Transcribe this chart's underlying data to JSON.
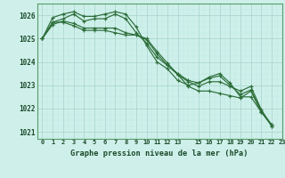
{
  "title": "Graphe pression niveau de la mer (hPa)",
  "bg_color": "#cff0ea",
  "grid_color_major": "#aad8d0",
  "grid_color_minor": "#bce8e2",
  "line_color": "#2d6e3a",
  "spine_color": "#5a9a6a",
  "ylim": [
    1020.7,
    1026.5
  ],
  "xlim": [
    -0.5,
    23
  ],
  "yticks": [
    1021,
    1022,
    1023,
    1024,
    1025,
    1026
  ],
  "xtick_positions": [
    0,
    1,
    2,
    3,
    4,
    5,
    6,
    7,
    8,
    9,
    10,
    11,
    12,
    13,
    15,
    16,
    17,
    18,
    19,
    20,
    21,
    22,
    23
  ],
  "xtick_labels": [
    "0",
    "1",
    "2",
    "3",
    "4",
    "5",
    "6",
    "7",
    "8",
    "9",
    "10",
    "11",
    "12",
    "13",
    "15",
    "16",
    "17",
    "18",
    "19",
    "20",
    "21",
    "22",
    "23"
  ],
  "series": [
    [
      1025.0,
      1025.7,
      1025.85,
      1026.05,
      1025.75,
      1025.85,
      1025.85,
      1026.05,
      1025.85,
      1025.25,
      1024.8,
      1024.2,
      1023.85,
      1023.5,
      1023.2,
      1023.1,
      1023.3,
      1023.4,
      1023.0,
      1022.6,
      1022.8,
      1021.9,
      1021.3
    ],
    [
      1025.0,
      1025.9,
      1026.05,
      1026.15,
      1025.95,
      1025.95,
      1026.05,
      1026.15,
      1026.05,
      1025.5,
      1024.7,
      1024.0,
      1023.7,
      1023.2,
      1023.0,
      1023.1,
      1023.35,
      1023.5,
      1023.1,
      1022.5,
      1022.5,
      1021.85,
      1021.3
    ],
    [
      1025.0,
      1025.6,
      1025.75,
      1025.65,
      1025.45,
      1025.45,
      1025.45,
      1025.45,
      1025.25,
      1025.15,
      1025.0,
      1024.45,
      1023.95,
      1023.45,
      1022.95,
      1022.75,
      1022.75,
      1022.65,
      1022.55,
      1022.45,
      1022.75,
      1021.85,
      1021.25
    ],
    [
      1025.0,
      1025.7,
      1025.7,
      1025.55,
      1025.35,
      1025.35,
      1025.35,
      1025.25,
      1025.15,
      1025.15,
      1024.95,
      1024.35,
      1023.85,
      1023.45,
      1023.15,
      1022.95,
      1023.15,
      1023.15,
      1022.95,
      1022.75,
      1022.95,
      1021.95,
      1021.25
    ]
  ]
}
